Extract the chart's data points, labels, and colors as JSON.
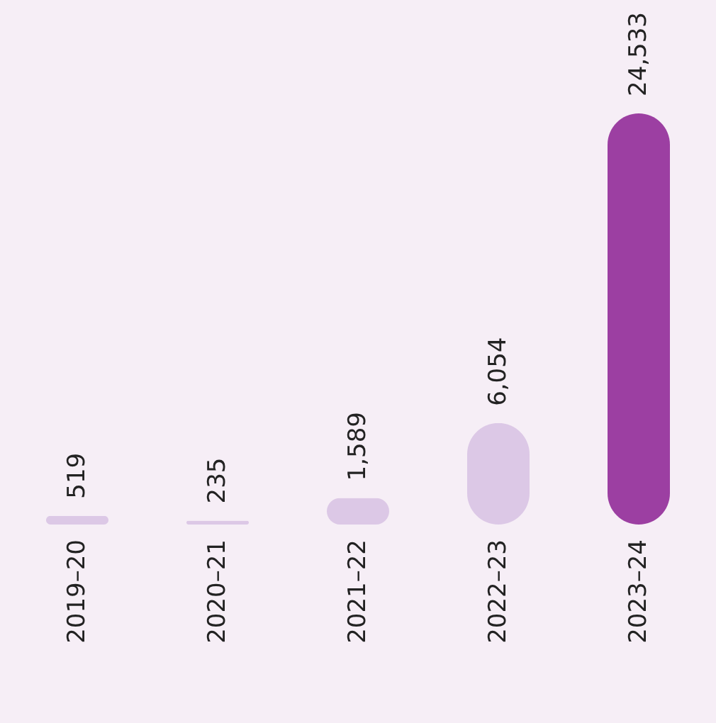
{
  "chart_data": {
    "type": "bar",
    "categories": [
      "2019–20",
      "2020–21",
      "2021–22",
      "2022–23",
      "2023–24"
    ],
    "values": [
      519,
      235,
      1589,
      6054,
      24533
    ],
    "colors": [
      "#dcc8e6",
      "#dcc8e6",
      "#dcc8e6",
      "#dcc8e6",
      "#9c3fa2"
    ],
    "value_labels": [
      "519",
      "235",
      "1,589",
      "6,054",
      "24,533"
    ]
  }
}
